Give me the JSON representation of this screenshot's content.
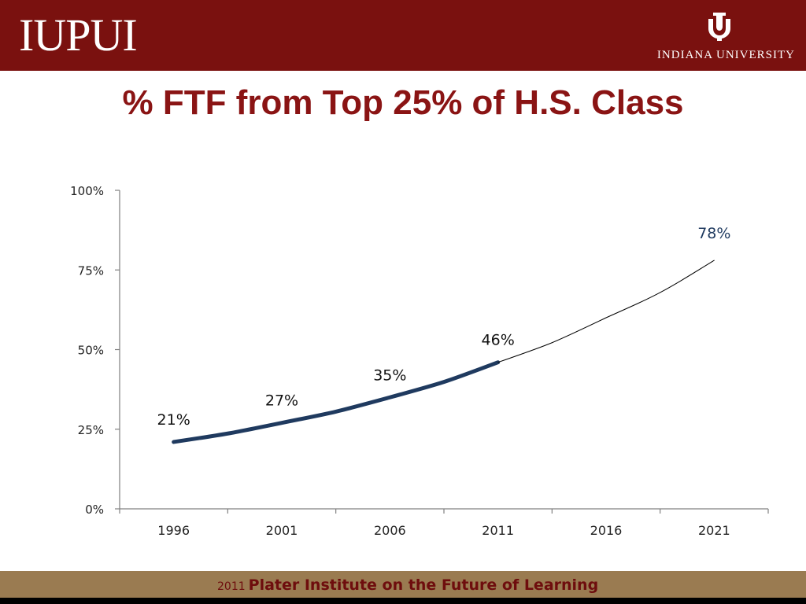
{
  "header": {
    "logo_text": "IUPUI",
    "org_text": "INDIANA UNIVERSITY"
  },
  "title": "% FTF from Top 25% of H.S. Class",
  "footer": {
    "year": "2011",
    "text": "Plater Institute on the Future of Learning"
  },
  "colors": {
    "header": "#7a110f",
    "title": "#8a1414",
    "actual_line": "#1f3a5f",
    "projection_line": "#000000",
    "footer": "#9a7b51"
  },
  "chart_data": {
    "type": "line",
    "title": "",
    "xlabel": "",
    "ylabel": "",
    "categories": [
      "1996",
      "2001",
      "2006",
      "2011",
      "2016",
      "2021"
    ],
    "y_ticks": [
      "0%",
      "25%",
      "50%",
      "75%",
      "100%"
    ],
    "ylim": [
      0,
      100
    ],
    "grid": false,
    "series": [
      {
        "x": [
          1996,
          2001,
          2006,
          2011
        ],
        "values": [
          21,
          27,
          35,
          46
        ],
        "labels": [
          "21%",
          "27%",
          "35%",
          "46%"
        ],
        "style": "thick"
      },
      {
        "x": [
          2011,
          2016,
          2021
        ],
        "values": [
          46,
          60,
          78
        ],
        "labels": [
          "",
          "",
          "78%"
        ],
        "style": "thin"
      }
    ]
  }
}
